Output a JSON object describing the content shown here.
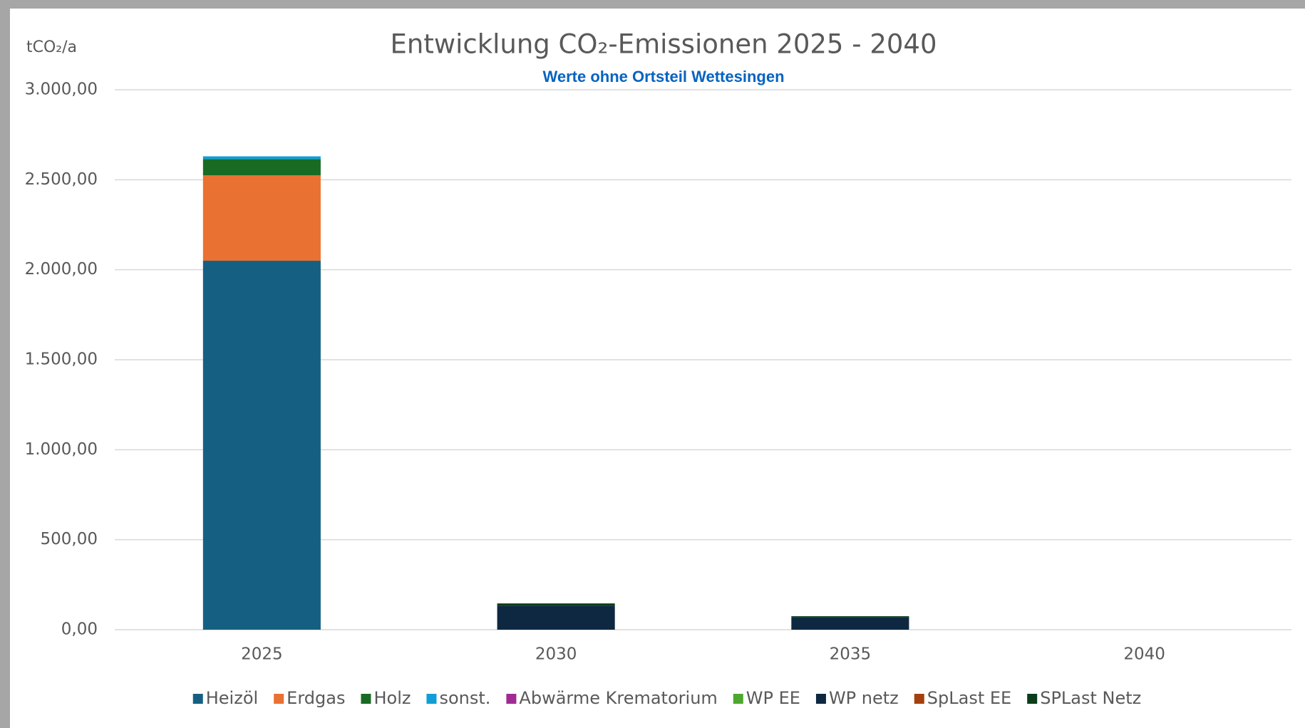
{
  "chart_data": {
    "type": "stacked_bar",
    "title": "Entwicklung CO₂-Emissionen 2025 - 2040",
    "subtitle": "Werte ohne Ortsteil Wettesingen",
    "y_label": "tCO₂/a",
    "categories": [
      "2025",
      "2030",
      "2035",
      "2040"
    ],
    "series": [
      {
        "name": "Heizöl",
        "color": "#156082",
        "values": [
          2050,
          0,
          0,
          0
        ]
      },
      {
        "name": "Erdgas",
        "color": "#e97132",
        "values": [
          475,
          0,
          0,
          0
        ]
      },
      {
        "name": "Holz",
        "color": "#196b24",
        "values": [
          90,
          0,
          0,
          0
        ]
      },
      {
        "name": "sonst.",
        "color": "#0f9ed5",
        "values": [
          15,
          0,
          0,
          0
        ]
      },
      {
        "name": "Abwärme Krematorium",
        "color": "#a02b93",
        "values": [
          0,
          0,
          0,
          0
        ]
      },
      {
        "name": "WP EE",
        "color": "#4ea72e",
        "values": [
          0,
          0,
          0,
          0
        ]
      },
      {
        "name": "WP netz",
        "color": "#0e2841",
        "values": [
          0,
          134,
          70,
          0
        ]
      },
      {
        "name": "SpLast EE",
        "color": "#a5400e",
        "values": [
          0,
          0,
          0,
          0
        ]
      },
      {
        "name": "SPLast Netz",
        "color": "#0b3d1a",
        "values": [
          0,
          12,
          5,
          0
        ]
      }
    ],
    "ylim": [
      0,
      3000
    ],
    "yticks": [
      {
        "value": 0,
        "label": "0,00"
      },
      {
        "value": 500,
        "label": "500,00"
      },
      {
        "value": 1000,
        "label": "1.000,00"
      },
      {
        "value": 1500,
        "label": "1.500,00"
      },
      {
        "value": 2000,
        "label": "2.000,00"
      },
      {
        "value": 2500,
        "label": "2.500,00"
      },
      {
        "value": 3000,
        "label": "3.000,00"
      }
    ],
    "grid": true,
    "legend": "bottom"
  }
}
